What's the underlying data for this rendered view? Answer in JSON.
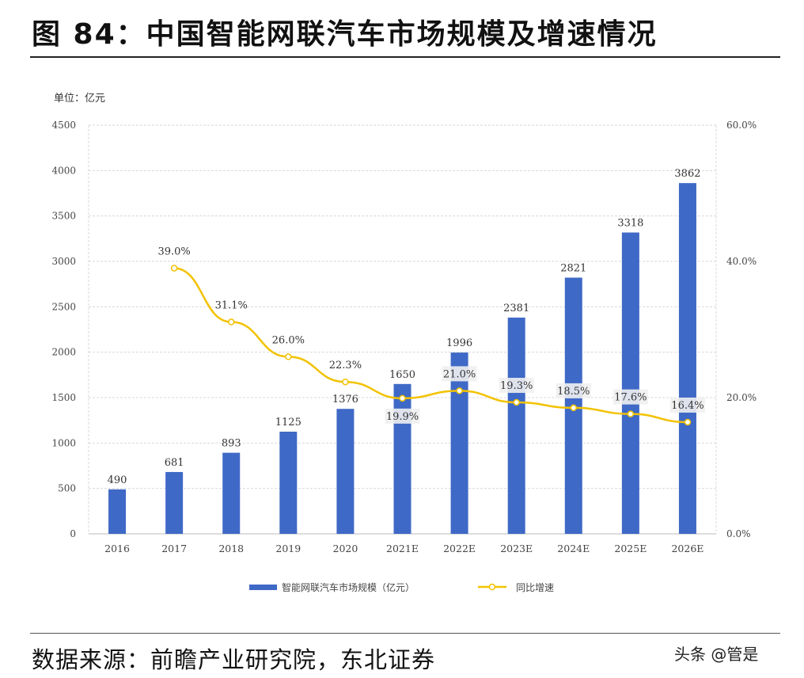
{
  "title": "图 84：中国智能网联汽车市场规模及增速情况",
  "source": "数据来源：前瞻产业研究院，东北证券",
  "watermark": "头条 @管是",
  "chart_data": {
    "type": "bar+line",
    "unit_label": "单位：亿元",
    "categories": [
      "2016",
      "2017",
      "2018",
      "2019",
      "2020",
      "2021E",
      "2022E",
      "2023E",
      "2024E",
      "2025E",
      "2026E"
    ],
    "series": [
      {
        "name": "智能网联汽车市场规模（亿元）",
        "type": "bar",
        "axis": "left",
        "color": "#3f69c6",
        "values": [
          490,
          681,
          893,
          1125,
          1376,
          1650,
          1996,
          2381,
          2821,
          3318,
          3862
        ]
      },
      {
        "name": "同比增速",
        "type": "line",
        "axis": "right",
        "color": "#f2c200",
        "values": [
          null,
          39.0,
          31.1,
          26.0,
          22.3,
          19.9,
          21.0,
          19.3,
          18.5,
          17.6,
          16.4
        ]
      }
    ],
    "left_axis": {
      "ylim": [
        0,
        4500
      ],
      "ticks": [
        "0",
        "500",
        "1000",
        "1500",
        "2000",
        "2500",
        "3000",
        "3500",
        "4000",
        "4500"
      ]
    },
    "right_axis": {
      "ylim": [
        0,
        60
      ],
      "ticks": [
        "0.0%",
        "20.0%",
        "40.0%",
        "60.0%"
      ]
    },
    "grid": true,
    "legend": "bottom"
  }
}
